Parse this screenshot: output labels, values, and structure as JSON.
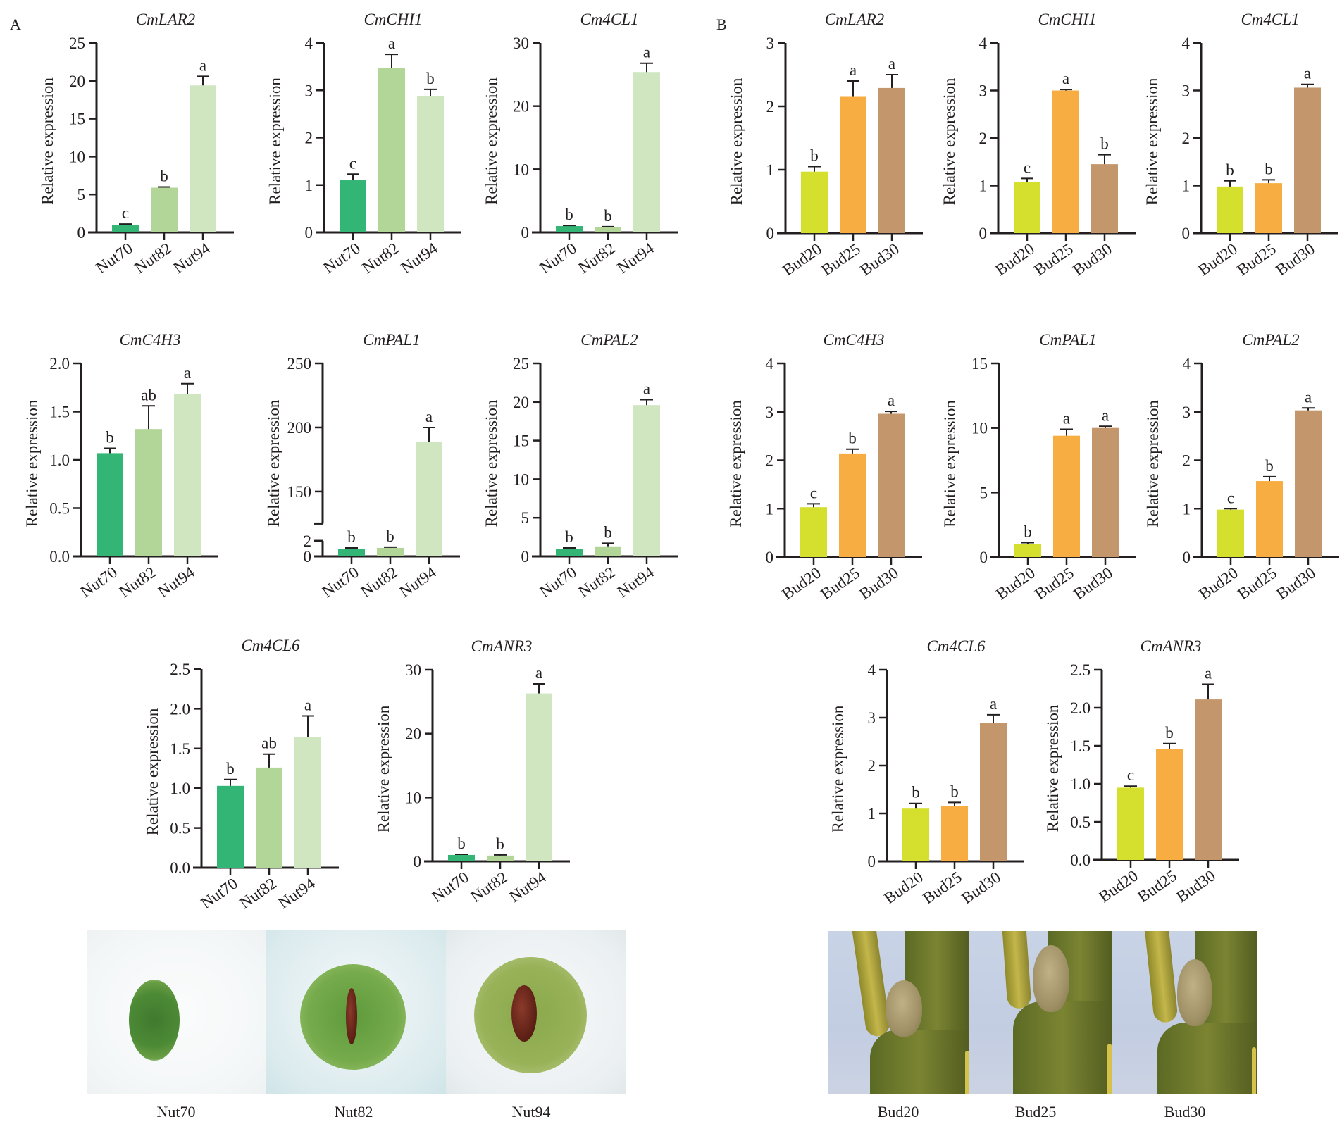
{
  "figure": {
    "panels": [
      {
        "letter": "A",
        "photo_labels": [
          "Nut70",
          "Nut82",
          "Nut94"
        ]
      },
      {
        "letter": "B",
        "photo_labels": [
          "Bud20",
          "Bud25",
          "Bud30"
        ]
      }
    ]
  },
  "chart_data": [
    {
      "panel": "A",
      "type": "bar",
      "title": "CmLAR2",
      "ylabel": "Relative expression",
      "categories": [
        "Nut70",
        "Nut82",
        "Nut94"
      ],
      "values": [
        1.0,
        5.9,
        19.4
      ],
      "errors": [
        0.1,
        0.1,
        1.2
      ],
      "letters": [
        "c",
        "b",
        "a"
      ],
      "ylim": [
        0,
        25
      ],
      "yticks": [
        0,
        5,
        10,
        15,
        20,
        25
      ],
      "ytick_labels": [
        "0",
        "5",
        "10",
        "15",
        "20",
        "25"
      ],
      "colors": [
        "#33b575",
        "#b1d698",
        "#cfe6c1"
      ]
    },
    {
      "panel": "A",
      "type": "bar",
      "title": "CmCHI1",
      "ylabel": "Relative expression",
      "categories": [
        "Nut70",
        "Nut82",
        "Nut94"
      ],
      "values": [
        1.1,
        3.47,
        2.87
      ],
      "errors": [
        0.13,
        0.29,
        0.15
      ],
      "letters": [
        "c",
        "a",
        "b"
      ],
      "ylim": [
        0,
        4
      ],
      "yticks": [
        0,
        1,
        2,
        3,
        4
      ],
      "ytick_labels": [
        "0",
        "1",
        "2",
        "3",
        "4"
      ],
      "colors": [
        "#33b575",
        "#b1d698",
        "#cfe6c1"
      ]
    },
    {
      "panel": "A",
      "type": "bar",
      "title": "Cm4CL1",
      "ylabel": "Relative expression",
      "categories": [
        "Nut70",
        "Nut82",
        "Nut94"
      ],
      "values": [
        1.0,
        0.8,
        25.4
      ],
      "errors": [
        0.1,
        0.1,
        1.4
      ],
      "letters": [
        "b",
        "b",
        "a"
      ],
      "ylim": [
        0,
        30
      ],
      "yticks": [
        0,
        10,
        20,
        30
      ],
      "ytick_labels": [
        "0",
        "10",
        "20",
        "30"
      ],
      "colors": [
        "#33b575",
        "#b1d698",
        "#cfe6c1"
      ]
    },
    {
      "panel": "A",
      "type": "bar",
      "title": "CmC4H3",
      "ylabel": "Relative expression",
      "categories": [
        "Nut70",
        "Nut82",
        "Nut94"
      ],
      "values": [
        1.07,
        1.32,
        1.68
      ],
      "errors": [
        0.05,
        0.24,
        0.11
      ],
      "letters": [
        "b",
        "ab",
        "a"
      ],
      "ylim": [
        0,
        2
      ],
      "yticks": [
        0,
        0.5,
        1.0,
        1.5,
        2.0
      ],
      "ytick_labels": [
        "0.0",
        "0.5",
        "1.0",
        "1.5",
        "2.0"
      ],
      "colors": [
        "#33b575",
        "#b1d698",
        "#cfe6c1"
      ]
    },
    {
      "panel": "A",
      "type": "bar",
      "title": "CmPAL1",
      "ylabel": "Relative expression",
      "categories": [
        "Nut70",
        "Nut82",
        "Nut94"
      ],
      "values": [
        1.0,
        1.1,
        189
      ],
      "errors": [
        0.1,
        0.1,
        11
      ],
      "letters": [
        "b",
        "b",
        "a"
      ],
      "ylim": [
        0,
        250
      ],
      "axis_break": [
        2,
        125
      ],
      "yticks": [
        0,
        2,
        150,
        200,
        250
      ],
      "ytick_labels": [
        "0",
        "2",
        "150",
        "200",
        "250"
      ],
      "colors": [
        "#33b575",
        "#b1d698",
        "#cfe6c1"
      ]
    },
    {
      "panel": "A",
      "type": "bar",
      "title": "CmPAL2",
      "ylabel": "Relative expression",
      "categories": [
        "Nut70",
        "Nut82",
        "Nut94"
      ],
      "values": [
        1.0,
        1.3,
        19.6
      ],
      "errors": [
        0.1,
        0.4,
        0.7
      ],
      "letters": [
        "b",
        "b",
        "a"
      ],
      "ylim": [
        0,
        25
      ],
      "yticks": [
        0,
        5,
        10,
        15,
        20,
        25
      ],
      "ytick_labels": [
        "0",
        "5",
        "10",
        "15",
        "20",
        "25"
      ],
      "colors": [
        "#33b575",
        "#b1d698",
        "#cfe6c1"
      ]
    },
    {
      "panel": "A",
      "type": "bar",
      "title": "Cm4CL6",
      "ylabel": "Relative expression",
      "categories": [
        "Nut70",
        "Nut82",
        "Nut94"
      ],
      "values": [
        1.03,
        1.26,
        1.64
      ],
      "errors": [
        0.08,
        0.17,
        0.27
      ],
      "letters": [
        "b",
        "ab",
        "a"
      ],
      "ylim": [
        0,
        2.5
      ],
      "yticks": [
        0,
        0.5,
        1.0,
        1.5,
        2.0,
        2.5
      ],
      "ytick_labels": [
        "0.0",
        "0.5",
        "1.0",
        "1.5",
        "2.0",
        "2.5"
      ],
      "colors": [
        "#33b575",
        "#b1d698",
        "#cfe6c1"
      ]
    },
    {
      "panel": "A",
      "type": "bar",
      "title": "CmANR3",
      "ylabel": "Relative expression",
      "categories": [
        "Nut70",
        "Nut82",
        "Nut94"
      ],
      "values": [
        1.0,
        0.9,
        26.3
      ],
      "errors": [
        0.1,
        0.1,
        1.5
      ],
      "letters": [
        "b",
        "b",
        "a"
      ],
      "ylim": [
        0,
        30
      ],
      "yticks": [
        0,
        10,
        20,
        30
      ],
      "ytick_labels": [
        "0",
        "10",
        "20",
        "30"
      ],
      "colors": [
        "#33b575",
        "#b1d698",
        "#cfe6c1"
      ]
    },
    {
      "panel": "B",
      "type": "bar",
      "title": "CmLAR2",
      "ylabel": "Relative expression",
      "categories": [
        "Bud20",
        "Bud25",
        "Bud30"
      ],
      "values": [
        0.97,
        2.15,
        2.29
      ],
      "errors": [
        0.08,
        0.25,
        0.21
      ],
      "letters": [
        "b",
        "a",
        "a"
      ],
      "ylim": [
        0,
        3
      ],
      "yticks": [
        0,
        1,
        2,
        3
      ],
      "ytick_labels": [
        "0",
        "1",
        "2",
        "3"
      ],
      "colors": [
        "#d5df2e",
        "#f7ad42",
        "#c3966b"
      ]
    },
    {
      "panel": "B",
      "type": "bar",
      "title": "CmCHI1",
      "ylabel": "Relative expression",
      "categories": [
        "Bud20",
        "Bud25",
        "Bud30"
      ],
      "values": [
        1.07,
        3.0,
        1.45
      ],
      "errors": [
        0.08,
        0.02,
        0.2
      ],
      "letters": [
        "c",
        "a",
        "b"
      ],
      "ylim": [
        0,
        4
      ],
      "yticks": [
        0,
        1,
        2,
        3,
        4
      ],
      "ytick_labels": [
        "0",
        "1",
        "2",
        "3",
        "4"
      ],
      "colors": [
        "#d5df2e",
        "#f7ad42",
        "#c3966b"
      ]
    },
    {
      "panel": "B",
      "type": "bar",
      "title": "Cm4CL1",
      "ylabel": "Relative expression",
      "categories": [
        "Bud20",
        "Bud25",
        "Bud30"
      ],
      "values": [
        0.98,
        1.05,
        3.06
      ],
      "errors": [
        0.12,
        0.07,
        0.07
      ],
      "letters": [
        "b",
        "b",
        "a"
      ],
      "ylim": [
        0,
        4
      ],
      "yticks": [
        0,
        1,
        2,
        3,
        4
      ],
      "ytick_labels": [
        "0",
        "1",
        "2",
        "3",
        "4"
      ],
      "colors": [
        "#d5df2e",
        "#f7ad42",
        "#c3966b"
      ]
    },
    {
      "panel": "B",
      "type": "bar",
      "title": "CmC4H3",
      "ylabel": "Relative expression",
      "categories": [
        "Bud20",
        "Bud25",
        "Bud30"
      ],
      "values": [
        1.03,
        2.14,
        2.96
      ],
      "errors": [
        0.07,
        0.09,
        0.05
      ],
      "letters": [
        "c",
        "b",
        "a"
      ],
      "ylim": [
        0,
        4
      ],
      "yticks": [
        0,
        1,
        2,
        3,
        4
      ],
      "ytick_labels": [
        "0",
        "1",
        "2",
        "3",
        "4"
      ],
      "colors": [
        "#d5df2e",
        "#f7ad42",
        "#c3966b"
      ]
    },
    {
      "panel": "B",
      "type": "bar",
      "title": "CmPAL1",
      "ylabel": "Relative expression",
      "categories": [
        "Bud20",
        "Bud25",
        "Bud30"
      ],
      "values": [
        1.0,
        9.4,
        10.0
      ],
      "errors": [
        0.12,
        0.5,
        0.13
      ],
      "letters": [
        "b",
        "a",
        "a"
      ],
      "ylim": [
        0,
        15
      ],
      "yticks": [
        0,
        5,
        10,
        15
      ],
      "ytick_labels": [
        "0",
        "5",
        "10",
        "15"
      ],
      "colors": [
        "#d5df2e",
        "#f7ad42",
        "#c3966b"
      ]
    },
    {
      "panel": "B",
      "type": "bar",
      "title": "CmPAL2",
      "ylabel": "Relative expression",
      "categories": [
        "Bud20",
        "Bud25",
        "Bud30"
      ],
      "values": [
        0.98,
        1.57,
        3.03
      ],
      "errors": [
        0.02,
        0.09,
        0.05
      ],
      "letters": [
        "c",
        "b",
        "a"
      ],
      "ylim": [
        0,
        4
      ],
      "yticks": [
        0,
        1,
        2,
        3,
        4
      ],
      "ytick_labels": [
        "0",
        "1",
        "2",
        "3",
        "4"
      ],
      "colors": [
        "#d5df2e",
        "#f7ad42",
        "#c3966b"
      ]
    },
    {
      "panel": "B",
      "type": "bar",
      "title": "Cm4CL6",
      "ylabel": "Relative expression",
      "categories": [
        "Bud20",
        "Bud25",
        "Bud30"
      ],
      "values": [
        1.1,
        1.16,
        2.89
      ],
      "errors": [
        0.11,
        0.07,
        0.17
      ],
      "letters": [
        "b",
        "b",
        "a"
      ],
      "ylim": [
        0,
        4
      ],
      "yticks": [
        0,
        1,
        2,
        3,
        4
      ],
      "ytick_labels": [
        "0",
        "1",
        "2",
        "3",
        "4"
      ],
      "colors": [
        "#d5df2e",
        "#f7ad42",
        "#c3966b"
      ]
    },
    {
      "panel": "B",
      "type": "bar",
      "title": "CmANR3",
      "ylabel": "Relative expression",
      "categories": [
        "Bud20",
        "Bud25",
        "Bud30"
      ],
      "values": [
        0.95,
        1.46,
        2.11
      ],
      "errors": [
        0.02,
        0.07,
        0.2
      ],
      "letters": [
        "c",
        "b",
        "a"
      ],
      "ylim": [
        0,
        2.5
      ],
      "yticks": [
        0,
        0.5,
        1.0,
        1.5,
        2.0,
        2.5
      ],
      "ytick_labels": [
        "0.0",
        "0.5",
        "1.0",
        "1.5",
        "2.0",
        "2.5"
      ],
      "colors": [
        "#d5df2e",
        "#f7ad42",
        "#c3966b"
      ]
    }
  ]
}
